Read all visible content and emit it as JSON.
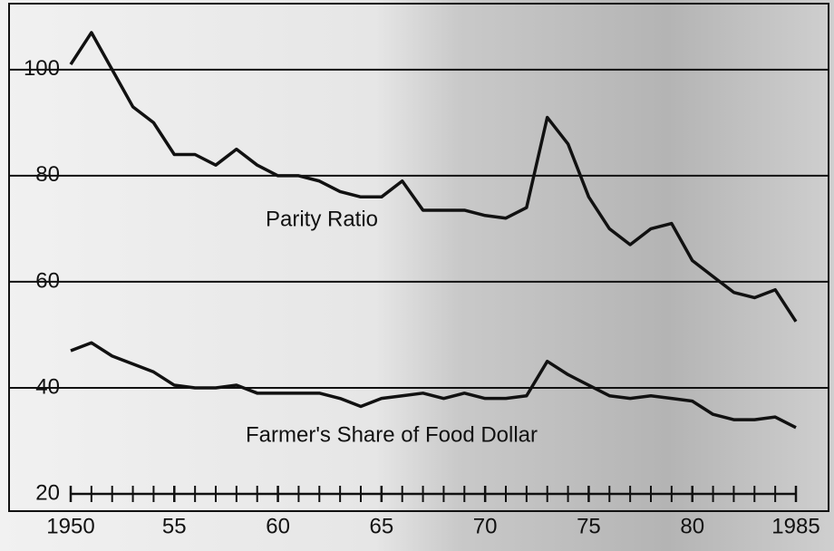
{
  "chart_data": {
    "type": "line",
    "x": [
      1950,
      1951,
      1952,
      1953,
      1954,
      1955,
      1956,
      1957,
      1958,
      1959,
      1960,
      1961,
      1962,
      1963,
      1964,
      1965,
      1966,
      1967,
      1968,
      1969,
      1970,
      1971,
      1972,
      1973,
      1974,
      1975,
      1976,
      1977,
      1978,
      1979,
      1980,
      1981,
      1982,
      1983,
      1984,
      1985
    ],
    "series": [
      {
        "name": "Parity Ratio",
        "color": "#111111",
        "values": [
          101,
          107,
          100,
          93,
          90,
          84,
          84,
          82,
          85,
          82,
          80,
          80,
          79,
          77,
          76,
          76,
          79,
          73.5,
          73.5,
          73.5,
          72.5,
          72,
          74,
          91,
          86,
          76,
          70,
          67,
          70,
          71,
          64,
          61,
          58,
          57,
          58.5,
          52.5
        ]
      },
      {
        "name": "Farmer's Share of Food Dollar",
        "color": "#111111",
        "values": [
          47,
          48.5,
          46,
          44.5,
          43,
          40.5,
          40,
          40,
          40.5,
          39,
          39,
          39,
          39,
          38,
          36.5,
          38,
          38.5,
          39,
          38,
          39,
          38,
          38,
          38.5,
          45,
          42.5,
          40.5,
          38.5,
          38,
          38.5,
          38,
          37.5,
          35,
          34,
          34,
          34.5,
          32.5
        ]
      }
    ],
    "xlim": [
      1950,
      1985
    ],
    "xticks": [
      {
        "value": 1950,
        "label": "1950"
      },
      {
        "value": 1955,
        "label": "55"
      },
      {
        "value": 1960,
        "label": "60"
      },
      {
        "value": 1965,
        "label": "65"
      },
      {
        "value": 1970,
        "label": "70"
      },
      {
        "value": 1975,
        "label": "75"
      },
      {
        "value": 1980,
        "label": "80"
      },
      {
        "value": 1985,
        "label": "1985"
      }
    ],
    "ylim": [
      20,
      113
    ],
    "yticks": [
      20,
      40,
      60,
      80,
      100
    ],
    "grid": true
  }
}
